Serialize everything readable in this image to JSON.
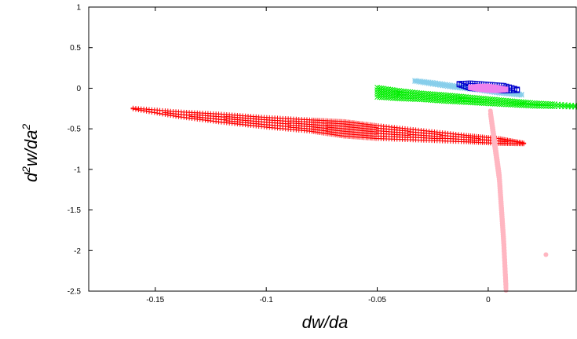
{
  "chart_data": {
    "type": "scatter",
    "title": "",
    "xlabel": "dw/da",
    "ylabel_base": "d",
    "ylabel_sup1": "2",
    "ylabel_mid": "w/da",
    "ylabel_sup2": "2",
    "xlim": [
      -0.18,
      0.04
    ],
    "ylim": [
      -2.5,
      1
    ],
    "xticks": [
      {
        "value": -0.15,
        "label": "-0.15"
      },
      {
        "value": -0.1,
        "label": "-0.1"
      },
      {
        "value": -0.05,
        "label": "-0.05"
      },
      {
        "value": 0,
        "label": "0"
      }
    ],
    "yticks": [
      {
        "value": 1,
        "label": "1"
      },
      {
        "value": 0.5,
        "label": "0.5"
      },
      {
        "value": 0,
        "label": "0"
      },
      {
        "value": -0.5,
        "label": "-0.5"
      },
      {
        "value": -1,
        "label": "-1"
      },
      {
        "value": -1.5,
        "label": "-1.5"
      },
      {
        "value": -2,
        "label": "-2"
      },
      {
        "value": -2.5,
        "label": "-2.5"
      }
    ],
    "grid": false,
    "series": [
      {
        "marker": "plus",
        "color": "#ff0000",
        "x": [
          -0.16,
          -0.14,
          -0.12,
          -0.1,
          -0.08,
          -0.065,
          -0.05,
          -0.03,
          -0.01,
          0.005,
          0.016
        ],
        "y_center": [
          -0.25,
          -0.32,
          -0.37,
          -0.42,
          -0.46,
          -0.5,
          -0.54,
          -0.58,
          -0.62,
          -0.65,
          -0.68
        ],
        "y_half_width": [
          0.005,
          0.03,
          0.05,
          0.06,
          0.07,
          0.09,
          0.08,
          0.06,
          0.04,
          0.03,
          0.005
        ]
      },
      {
        "marker": "cross",
        "color": "#00ee00",
        "x": [
          -0.05,
          -0.04,
          -0.03,
          -0.02,
          -0.01,
          0,
          0.01,
          0.02,
          0.03,
          0.045
        ],
        "y_center": [
          -0.05,
          -0.08,
          -0.1,
          -0.12,
          -0.14,
          -0.16,
          -0.18,
          -0.2,
          -0.21,
          -0.23
        ],
        "y_half_width": [
          0.06,
          0.05,
          0.04,
          0.04,
          0.035,
          0.03,
          0.025,
          0.02,
          0.015,
          0.005
        ]
      },
      {
        "marker": "star",
        "color": "#87ceeb",
        "x": [
          -0.033,
          -0.025,
          -0.015,
          -0.005,
          0.005,
          0.015
        ],
        "y_center": [
          0.09,
          0.06,
          0.02,
          -0.01,
          -0.05,
          -0.08
        ],
        "y_half_width": [
          0.005,
          0.01,
          0.01,
          0.01,
          0.01,
          0.005
        ]
      },
      {
        "marker": "square",
        "color": "#0000cd",
        "x": [
          -0.013,
          -0.008,
          -0.003,
          0.002,
          0.007,
          0.013
        ],
        "y_center": [
          0.05,
          0.03,
          0.02,
          0.01,
          0,
          -0.02
        ],
        "y_half_width": [
          0.005,
          0.03,
          0.03,
          0.03,
          0.03,
          0.005
        ]
      },
      {
        "marker": "filled-square",
        "color": "#ee82ee",
        "x": [
          -0.008,
          -0.004,
          0,
          0.004,
          0.008
        ],
        "y_center": [
          0.01,
          0.005,
          0,
          -0.01,
          -0.015
        ],
        "y_half_width": [
          0.005,
          0.02,
          0.025,
          0.02,
          0.005
        ]
      },
      {
        "marker": "filled-circle",
        "color": "#ffb6c1",
        "x": [
          0.001,
          0.003,
          0.005,
          0.006,
          0.007,
          0.008
        ],
        "y_center": [
          -0.3,
          -0.7,
          -1.1,
          -1.5,
          -1.9,
          -2.45
        ],
        "y_half_width": [
          0.02,
          0.04,
          0.04,
          0.04,
          0.04,
          0.04
        ]
      },
      {
        "marker": "filled-circle",
        "color": "#ffb6c1",
        "x": [
          0.026
        ],
        "y_center": [
          -2.05
        ],
        "y_half_width": [
          0
        ]
      }
    ]
  }
}
